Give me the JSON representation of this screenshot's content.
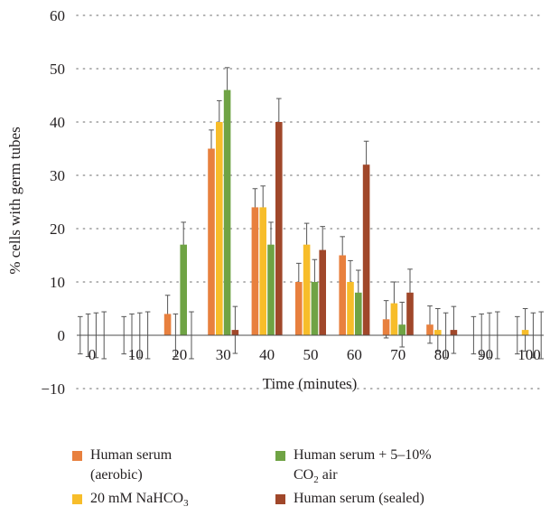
{
  "chart_data": {
    "type": "bar",
    "title": "",
    "xlabel": "Time (minutes)",
    "ylabel": "% cells with germ tubes",
    "ylim": [
      -10,
      60
    ],
    "yticks": [
      -10,
      0,
      10,
      20,
      30,
      40,
      50,
      60
    ],
    "grid": "horizontal dotted",
    "legend_position": "bottom",
    "categories": [
      "0",
      "10",
      "20",
      "30",
      "40",
      "50",
      "60",
      "70",
      "80",
      "90",
      "100"
    ],
    "series": [
      {
        "name": "Human serum (aerobic)",
        "color": "#e8803e",
        "values": [
          0,
          0,
          4,
          35,
          24,
          10,
          15,
          3,
          2,
          0,
          0
        ],
        "errors": [
          3.5,
          3.5,
          3.5,
          3.5,
          3.5,
          3.5,
          3.5,
          3.5,
          3.5,
          3.5,
          3.5
        ]
      },
      {
        "name": "20 mM NaHCO3",
        "color": "#f7bd2a",
        "values": [
          0,
          0,
          0,
          40,
          24,
          17,
          10,
          6,
          1,
          0,
          1
        ],
        "errors": [
          4,
          4,
          4,
          4,
          4,
          4,
          4,
          4,
          4,
          4,
          4
        ]
      },
      {
        "name": "Human serum + 5–10% CO2 air",
        "color": "#6fa344",
        "values": [
          0,
          0,
          17,
          46,
          17,
          10,
          8,
          2,
          0,
          0,
          0
        ],
        "errors": [
          4.2,
          4.2,
          4.2,
          4.2,
          4.2,
          4.2,
          4.2,
          4.2,
          4.2,
          4.2,
          4.2
        ]
      },
      {
        "name": "Human serum (sealed)",
        "color": "#a0472a",
        "values": [
          0,
          0,
          0,
          1,
          40,
          16,
          32,
          8,
          1,
          0,
          0
        ],
        "errors": [
          4.4,
          4.4,
          4.4,
          4.4,
          4.4,
          4.4,
          4.4,
          4.4,
          4.4,
          4.4,
          4.4
        ]
      }
    ]
  },
  "legend": {
    "items": [
      {
        "line1": "Human serum",
        "line2": "(aerobic)",
        "color": "#e8803e"
      },
      {
        "line1": "Human serum + 5–10%",
        "line2_prefix": "CO",
        "line2_sub": "2",
        "line2_suffix": " air",
        "color": "#6fa344"
      },
      {
        "prefix": "20 mM NaHCO",
        "sub": "3",
        "color": "#f7bd2a"
      },
      {
        "text": "Human serum (sealed)",
        "color": "#a0472a"
      }
    ]
  }
}
